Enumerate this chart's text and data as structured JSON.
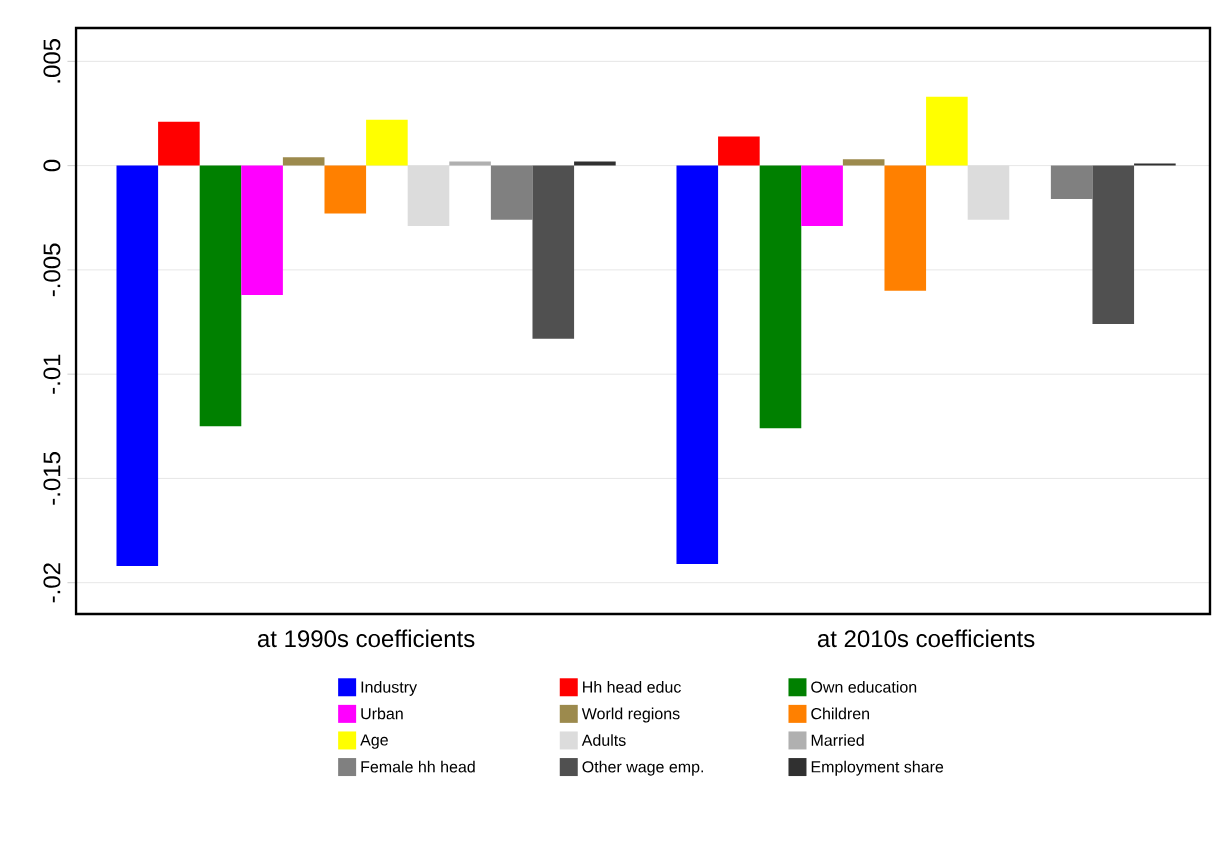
{
  "chart_data": {
    "type": "bar",
    "categories": [
      "at 1990s coefficients",
      "at 2010s coefficients"
    ],
    "series": [
      {
        "name": "Industry",
        "color": "#0000ff",
        "values": [
          -0.0192,
          -0.0191
        ]
      },
      {
        "name": "Hh head educ",
        "color": "#ff0000",
        "values": [
          0.0021,
          0.0014
        ]
      },
      {
        "name": "Own education",
        "color": "#008000",
        "values": [
          -0.0125,
          -0.0126
        ]
      },
      {
        "name": "Urban",
        "color": "#ff00ff",
        "values": [
          -0.0062,
          -0.0029
        ]
      },
      {
        "name": "World regions",
        "color": "#9c8a4d",
        "values": [
          0.0004,
          0.0003
        ]
      },
      {
        "name": "Children",
        "color": "#ff8000",
        "values": [
          -0.0023,
          -0.006
        ]
      },
      {
        "name": "Age",
        "color": "#ffff00",
        "values": [
          0.0022,
          0.0033
        ]
      },
      {
        "name": "Adults",
        "color": "#dcdcdc",
        "values": [
          -0.0029,
          -0.0026
        ]
      },
      {
        "name": "Married",
        "color": "#b0b0b0",
        "values": [
          0.0002,
          null
        ]
      },
      {
        "name": "Female hh head",
        "color": "#808080",
        "values": [
          -0.0026,
          -0.0016
        ]
      },
      {
        "name": "Other wage emp.",
        "color": "#505050",
        "values": [
          -0.0083,
          -0.0076
        ]
      },
      {
        "name": "Employment share",
        "color": "#303030",
        "values": [
          0.0002,
          0.0001
        ]
      }
    ],
    "ylim": [
      -0.0215,
      0.0066
    ],
    "yticks": [
      {
        "value": 0.005,
        "label": ".005"
      },
      0,
      {
        "value": -0.005,
        "label": "-.005"
      },
      {
        "value": -0.01,
        "label": "-.01"
      },
      {
        "value": -0.015,
        "label": "-.015"
      },
      {
        "value": -0.02,
        "label": "-.02"
      }
    ],
    "grid": "y",
    "legend": "bottom"
  }
}
